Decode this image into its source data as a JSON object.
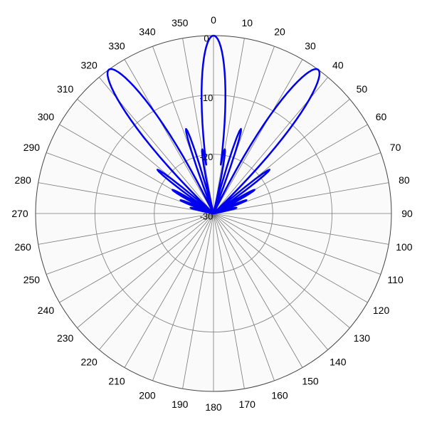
{
  "chart_data": {
    "type": "polar",
    "angle_ticks": [
      "0",
      "10",
      "20",
      "30",
      "40",
      "50",
      "60",
      "70",
      "80",
      "90",
      "100",
      "110",
      "120",
      "130",
      "140",
      "150",
      "160",
      "170",
      "180",
      "190",
      "200",
      "210",
      "220",
      "230",
      "240",
      "250",
      "260",
      "270",
      "280",
      "290",
      "300",
      "310",
      "320",
      "330",
      "340",
      "350"
    ],
    "radial_ticks": [
      "0",
      "-10",
      "-20",
      "-30"
    ],
    "r_range": [
      -30,
      0
    ],
    "angle_direction": "clockwise",
    "zero_angle": "top",
    "grid": true,
    "series": [
      {
        "color": "#0000ee",
        "lobes": [
          {
            "angle": 0,
            "peak": 0,
            "halfwidth": 10
          },
          {
            "angle": 36,
            "peak": 0,
            "halfwidth": 10
          },
          {
            "angle": 324,
            "peak": 0,
            "halfwidth": 10
          },
          {
            "angle": 18,
            "peak": -15,
            "halfwidth": 3
          },
          {
            "angle": 342,
            "peak": -15,
            "halfwidth": 3
          },
          {
            "angle": 10,
            "peak": -19,
            "halfwidth": 3
          },
          {
            "angle": 350,
            "peak": -19,
            "halfwidth": 3
          },
          {
            "angle": 52,
            "peak": -18,
            "halfwidth": 3
          },
          {
            "angle": 308,
            "peak": -18,
            "halfwidth": 3
          },
          {
            "angle": 60,
            "peak": -22,
            "halfwidth": 3
          },
          {
            "angle": 300,
            "peak": -22,
            "halfwidth": 3
          },
          {
            "angle": 68,
            "peak": -24,
            "halfwidth": 3
          },
          {
            "angle": 292,
            "peak": -24,
            "halfwidth": 3
          },
          {
            "angle": 76,
            "peak": -26,
            "halfwidth": 3
          },
          {
            "angle": 284,
            "peak": -26,
            "halfwidth": 3
          }
        ]
      }
    ]
  }
}
